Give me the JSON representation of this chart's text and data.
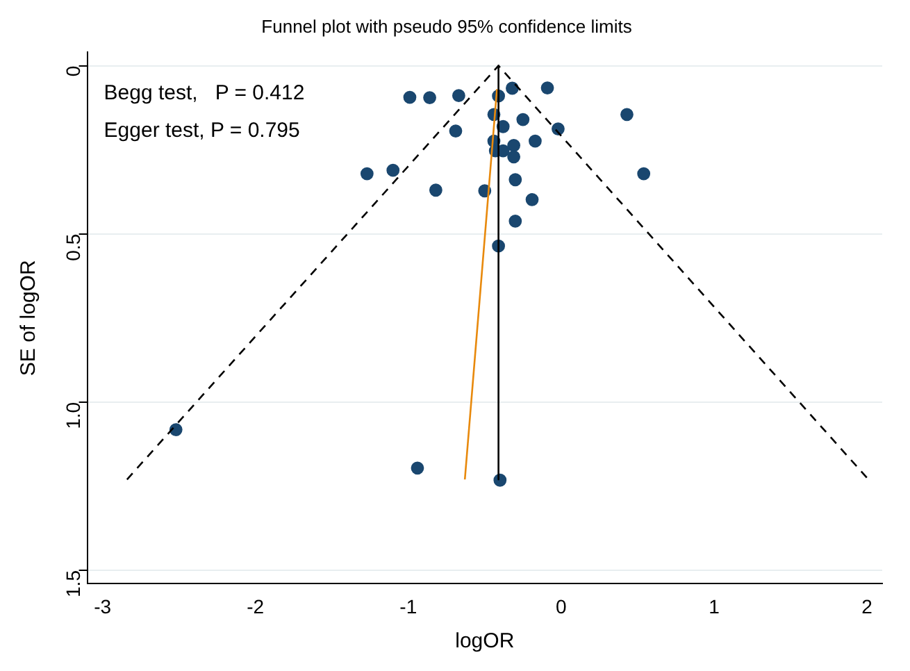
{
  "chart_data": {
    "type": "scatter",
    "title": "Funnel plot with pseudo 95% confidence limits",
    "xlabel": "logOR",
    "ylabel": "SE of logOR",
    "annotations": [
      "Begg test,   P = 0.412",
      "Egger test, P = 0.795"
    ],
    "xlim": [
      -3.1,
      2.1
    ],
    "xticks": [
      -3,
      -2,
      -1,
      0,
      1,
      2
    ],
    "ylim": [
      1.54,
      -0.04
    ],
    "yticks": [
      0,
      {
        "value": 0.5,
        "label": "0.5"
      },
      {
        "value": 1,
        "label": "1.0"
      },
      {
        "value": 1.5,
        "label": "1.5"
      }
    ],
    "grid": "y",
    "legend": false,
    "marker": "circle",
    "series": [
      {
        "type": "line",
        "color": "#000000",
        "line_style": "dashed",
        "marker": "none",
        "x": [
          -2.84,
          -0.41,
          2.01
        ],
        "values": [
          1.23,
          0,
          1.23
        ]
      },
      {
        "type": "line",
        "color": "#000000",
        "line_style": "solid",
        "marker": "none",
        "x": [
          -0.41,
          -0.41
        ],
        "values": [
          0,
          1.23
        ]
      },
      {
        "type": "line",
        "color": "#e8890c",
        "line_style": "solid",
        "marker": "none",
        "x": [
          -0.42,
          -0.63
        ],
        "values": [
          0.07,
          1.23
        ]
      },
      {
        "color": "#1a476f",
        "x": [
          -0.99,
          -0.86,
          -0.67,
          -0.41,
          -0.32,
          -0.09,
          -0.44,
          -0.25,
          0.43,
          -0.69,
          -0.38,
          -0.02,
          -0.44,
          -0.31,
          -0.17,
          -0.43,
          -0.38,
          -0.31,
          -1.27,
          -1.1,
          0.54,
          -0.3,
          -0.82,
          -0.5,
          -0.19,
          -0.3,
          -0.41,
          -2.52,
          -0.94,
          -0.4
        ],
        "values": [
          0.094,
          0.095,
          0.089,
          0.09,
          0.067,
          0.066,
          0.145,
          0.16,
          0.145,
          0.194,
          0.181,
          0.188,
          0.224,
          0.237,
          0.224,
          0.253,
          0.253,
          0.271,
          0.321,
          0.311,
          0.321,
          0.339,
          0.37,
          0.372,
          0.398,
          0.462,
          0.536,
          1.082,
          1.196,
          1.232
        ]
      }
    ]
  }
}
